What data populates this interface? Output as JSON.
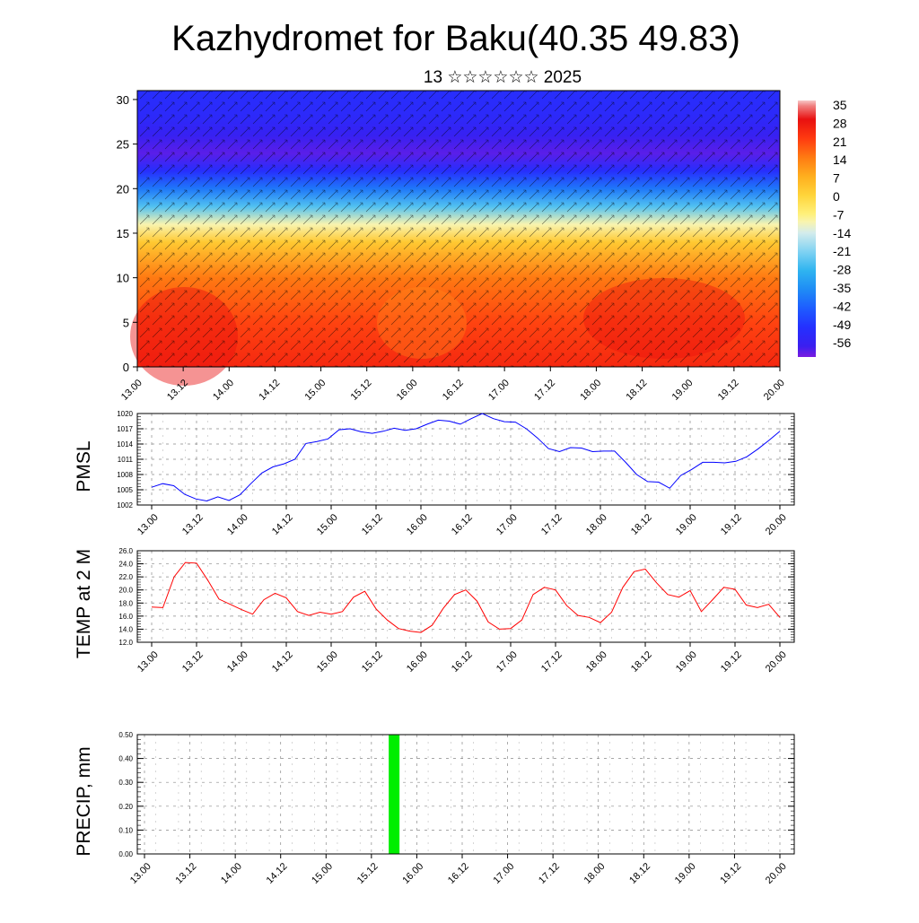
{
  "title": "Kazhydromet for Baku(40.35 49.83)",
  "subtitle": "13 ☆☆☆☆☆☆ 2025",
  "time_ticks": [
    "13.00",
    "13.12",
    "14.00",
    "14.12",
    "15.00",
    "15.12",
    "16.00",
    "16.12",
    "17.00",
    "17.12",
    "18.00",
    "18.12",
    "19.00",
    "19.12",
    "20.00"
  ],
  "chart_data": [
    {
      "type": "heatmap",
      "title": "",
      "xlabel": "",
      "ylabel": "",
      "x": [
        "13.00",
        "13.12",
        "14.00",
        "14.12",
        "15.00",
        "15.12",
        "16.00",
        "16.12",
        "17.00",
        "17.12",
        "18.00",
        "18.12",
        "19.00",
        "19.12",
        "20.00"
      ],
      "y_ticks": [
        0,
        5,
        10,
        15,
        20,
        25,
        30
      ],
      "ylim": [
        0,
        31
      ],
      "colorbar_labels": [
        "35",
        "28",
        "21",
        "14",
        "7",
        "0",
        "-7",
        "-14",
        "-21",
        "-28",
        "-35",
        "-42",
        "-49",
        "-56"
      ],
      "colorbar_range": [
        -60,
        35
      ],
      "temperature_profile": [
        {
          "level": 0,
          "value": 24
        },
        {
          "level": 5,
          "value": 20
        },
        {
          "level": 10,
          "value": 14
        },
        {
          "level": 14,
          "value": 2
        },
        {
          "level": 16,
          "value": -10
        },
        {
          "level": 18,
          "value": -25
        },
        {
          "level": 20,
          "value": -38
        },
        {
          "level": 22,
          "value": -50
        },
        {
          "level": 24,
          "value": -58
        },
        {
          "level": 26,
          "value": -55
        },
        {
          "level": 28,
          "value": -52
        },
        {
          "level": 31,
          "value": -50
        }
      ],
      "overlay": "wind barbs"
    },
    {
      "type": "line",
      "ylabel": "PMSL",
      "ylim": [
        1002,
        1020
      ],
      "y_ticks": [
        1002,
        1005,
        1008,
        1011,
        1014,
        1017,
        1020
      ],
      "x_ticks": [
        "13.00",
        "13.12",
        "14.00",
        "14.12",
        "15.00",
        "15.12",
        "16.00",
        "16.12",
        "17.00",
        "17.12",
        "18.00",
        "18.12",
        "19.00",
        "19.12",
        "20.00"
      ],
      "grid": true,
      "line_color": "#0000ff",
      "series": [
        {
          "values": [
            1005.5,
            1006.2,
            1005.8,
            1004.1,
            1003.2,
            1002.8,
            1003.6,
            1002.9,
            1004.0,
            1006.2,
            1008.3,
            1009.5,
            1010.1,
            1011.0,
            1014.1,
            1014.5,
            1015.0,
            1016.8,
            1017.0,
            1016.4,
            1016.1,
            1016.5,
            1017.1,
            1016.7,
            1017.0,
            1017.9,
            1018.7,
            1018.5,
            1017.9,
            1019.0,
            1020.0,
            1019.0,
            1018.4,
            1018.3,
            1017.0,
            1015.2,
            1013.1,
            1012.5,
            1013.3,
            1013.2,
            1012.5,
            1012.6,
            1012.6,
            1010.4,
            1008.0,
            1006.6,
            1006.5,
            1005.3,
            1007.8,
            1009.0,
            1010.4,
            1010.4,
            1010.3,
            1010.6,
            1011.5,
            1013.0,
            1014.7,
            1016.5
          ]
        }
      ]
    },
    {
      "type": "line",
      "ylabel": "TEMP at 2 M",
      "ylim": [
        12.0,
        26.0
      ],
      "y_ticks": [
        "12.0",
        "14.0",
        "16.0",
        "18.0",
        "20.0",
        "22.0",
        "24.0",
        "26.0"
      ],
      "x_ticks": [
        "13.00",
        "13.12",
        "14.00",
        "14.12",
        "15.00",
        "15.12",
        "16.00",
        "16.12",
        "17.00",
        "17.12",
        "18.00",
        "18.12",
        "19.00",
        "19.12",
        "20.00"
      ],
      "grid": true,
      "line_color": "#ff0000",
      "series": [
        {
          "values": [
            17.4,
            17.3,
            22.0,
            24.2,
            24.1,
            21.5,
            18.6,
            17.8,
            17.0,
            16.3,
            18.5,
            19.5,
            18.8,
            16.7,
            16.1,
            16.6,
            16.3,
            16.7,
            18.9,
            19.8,
            17.1,
            15.4,
            14.1,
            13.7,
            13.5,
            14.6,
            17.2,
            19.3,
            20.0,
            18.3,
            15.1,
            14.0,
            14.1,
            15.4,
            19.3,
            20.4,
            20.0,
            17.6,
            16.1,
            15.8,
            15.0,
            16.6,
            20.4,
            22.8,
            23.2,
            21.1,
            19.3,
            18.9,
            19.9,
            16.7,
            18.5,
            20.4,
            20.1,
            17.7,
            17.3,
            17.8,
            15.8
          ]
        }
      ]
    },
    {
      "type": "bar",
      "ylabel": "PRECIP, mm",
      "ylim": [
        0,
        0.5
      ],
      "y_ticks": [
        "0.00",
        "0.10",
        "0.20",
        "0.30",
        "0.40",
        "0.50"
      ],
      "x_ticks": [
        "13.00",
        "13.12",
        "14.00",
        "14.12",
        "15.00",
        "15.12",
        "16.00",
        "16.12",
        "17.00",
        "17.12",
        "18.00",
        "18.12",
        "19.00",
        "19.12",
        "20.00"
      ],
      "grid": true,
      "bar_color": "#00ee00",
      "bars": [
        {
          "x": "15.18",
          "value": 0.5
        }
      ]
    }
  ]
}
